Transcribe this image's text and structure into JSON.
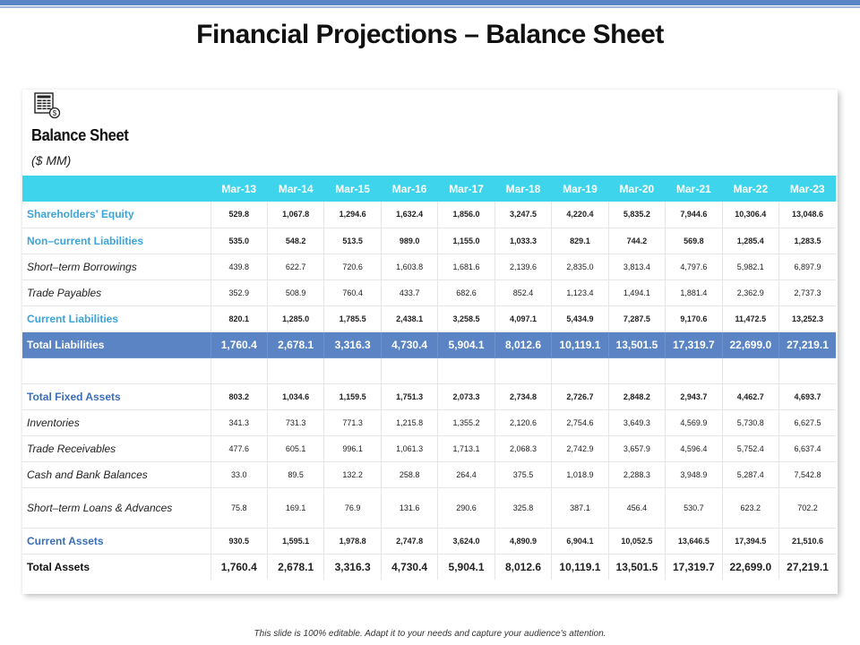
{
  "page": {
    "title": "Financial Projections – Balance Sheet",
    "footer": "This slide is 100% editable. Adapt it to your needs and capture your audience's attention."
  },
  "sheet": {
    "icon": "balance-sheet-document-icon",
    "title": "Balance Sheet",
    "unit": "($ MM)",
    "colors": {
      "header": "#3ed4ec",
      "total_row": "#5a84c4",
      "highlight_label": "#3ba4d9",
      "accent_label": "#3a6fb8"
    },
    "periods": [
      "Mar-13",
      "Mar-14",
      "Mar-15",
      "Mar-16",
      "Mar-17",
      "Mar-18",
      "Mar-19",
      "Mar-20",
      "Mar-21",
      "Mar-22",
      "Mar-23"
    ],
    "rows": [
      {
        "label": "Shareholders' Equity",
        "values": [
          "529.8",
          "1,067.8",
          "1,294.6",
          "1,632.4",
          "1,856.0",
          "3,247.5",
          "4,220.4",
          "5,835.2",
          "7,944.6",
          "10,306.4",
          "13,048.6"
        ]
      },
      {
        "label": "Non–current Liabilities",
        "values": [
          "535.0",
          "548.2",
          "513.5",
          "989.0",
          "1,155.0",
          "1,033.3",
          "829.1",
          "744.2",
          "569.8",
          "1,285.4",
          "1,283.5"
        ]
      },
      {
        "label": "Short–term Borrowings",
        "values": [
          "439.8",
          "622.7",
          "720.6",
          "1,603.8",
          "1,681.6",
          "2,139.6",
          "2,835.0",
          "3,813.4",
          "4,797.6",
          "5,982.1",
          "6,897.9"
        ]
      },
      {
        "label": "Trade Payables",
        "values": [
          "352.9",
          "508.9",
          "760.4",
          "433.7",
          "682.6",
          "852.4",
          "1,123.4",
          "1,494.1",
          "1,881.4",
          "2,362.9",
          "2,737.3"
        ]
      },
      {
        "label": "Current Liabilities",
        "values": [
          "820.1",
          "1,285.0",
          "1,785.5",
          "2,438.1",
          "3,258.5",
          "4,097.1",
          "5,434.9",
          "7,287.5",
          "9,170.6",
          "11,472.5",
          "13,252.3"
        ]
      },
      {
        "label": "Total Liabilities",
        "values": [
          "1,760.4",
          "2,678.1",
          "3,316.3",
          "4,730.4",
          "5,904.1",
          "8,012.6",
          "10,119.1",
          "13,501.5",
          "17,319.7",
          "22,699.0",
          "27,219.1"
        ]
      },
      {
        "label": "Total Fixed Assets",
        "values": [
          "803.2",
          "1,034.6",
          "1,159.5",
          "1,751.3",
          "2,073.3",
          "2,734.8",
          "2,726.7",
          "2,848.2",
          "2,943.7",
          "4,462.7",
          "4,693.7"
        ]
      },
      {
        "label": "Inventories",
        "values": [
          "341.3",
          "731.3",
          "771.3",
          "1,215.8",
          "1,355.2",
          "2,120.6",
          "2,754.6",
          "3,649.3",
          "4,569.9",
          "5,730.8",
          "6,627.5"
        ]
      },
      {
        "label": "Trade Receivables",
        "values": [
          "477.6",
          "605.1",
          "996.1",
          "1,061.3",
          "1,713.1",
          "2,068.3",
          "2,742.9",
          "3,657.9",
          "4,596.4",
          "5,752.4",
          "6,637.4"
        ]
      },
      {
        "label": "Cash and Bank Balances",
        "values": [
          "33.0",
          "89.5",
          "132.2",
          "258.8",
          "264.4",
          "375.5",
          "1,018.9",
          "2,288.3",
          "3,948.9",
          "5,287.4",
          "7,542.8"
        ]
      },
      {
        "label": "Short–term Loans & Advances",
        "values": [
          "75.8",
          "169.1",
          "76.9",
          "131.6",
          "290.6",
          "325.8",
          "387.1",
          "456.4",
          "530.7",
          "623.2",
          "702.2"
        ]
      },
      {
        "label": "Current Assets",
        "values": [
          "930.5",
          "1,595.1",
          "1,978.8",
          "2,747.8",
          "3,624.0",
          "4,890.9",
          "6,904.1",
          "10,052.5",
          "13,646.5",
          "17,394.5",
          "21,510.6"
        ]
      },
      {
        "label": "Total Assets",
        "values": [
          "1,760.4",
          "2,678.1",
          "3,316.3",
          "4,730.4",
          "5,904.1",
          "8,012.6",
          "10,119.1",
          "13,501.5",
          "17,319.7",
          "22,699.0",
          "27,219.1"
        ]
      }
    ]
  }
}
